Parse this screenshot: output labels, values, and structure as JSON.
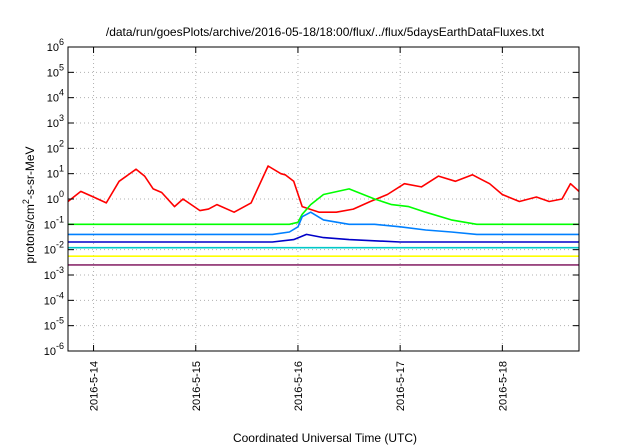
{
  "chart_data": {
    "type": "line",
    "title": "/data/run/goesPlots/archive/2016-05-18/18:00/flux/../flux/5daysEarthDataFluxes.txt",
    "xlabel": "Coordinated Universal Time (UTC)",
    "ylabel_main": "protons/cm",
    "ylabel_sup": "2",
    "ylabel_rest": "-s-sr-MeV",
    "y_scale": "log",
    "ylim": [
      1e-06,
      1000000.0
    ],
    "xlim": [
      "2016-05-13 18:00",
      "2016-05-18 18:00"
    ],
    "grid": true,
    "y_ticks": [
      {
        "exp": -6,
        "base": "10",
        "sup": "-6"
      },
      {
        "exp": -5,
        "base": "10",
        "sup": "-5"
      },
      {
        "exp": -4,
        "base": "10",
        "sup": "-4"
      },
      {
        "exp": -3,
        "base": "10",
        "sup": "-3"
      },
      {
        "exp": -2,
        "base": "10",
        "sup": "-2"
      },
      {
        "exp": -1,
        "base": "10",
        "sup": "-1"
      },
      {
        "exp": 0,
        "base": "10",
        "sup": "0"
      },
      {
        "exp": 1,
        "base": "10",
        "sup": "1"
      },
      {
        "exp": 2,
        "base": "10",
        "sup": "2"
      },
      {
        "exp": 3,
        "base": "10",
        "sup": "3"
      },
      {
        "exp": 4,
        "base": "10",
        "sup": "4"
      },
      {
        "exp": 5,
        "base": "10",
        "sup": "5"
      },
      {
        "exp": 6,
        "base": "10",
        "sup": "6"
      }
    ],
    "x_ticks": [
      {
        "value": "2016-05-14 00:00",
        "label": "2016-5-14"
      },
      {
        "value": "2016-05-15 00:00",
        "label": "2016-5-15"
      },
      {
        "value": "2016-05-16 00:00",
        "label": "2016-5-16"
      },
      {
        "value": "2016-05-17 00:00",
        "label": "2016-5-17"
      },
      {
        "value": "2016-05-18 00:00",
        "label": "2016-5-18"
      }
    ],
    "series": [
      {
        "color": "#ff0000",
        "x": [
          "2016-05-13 18:00",
          "2016-05-13 21:00",
          "2016-05-14 00:00",
          "2016-05-14 03:00",
          "2016-05-14 06:00",
          "2016-05-14 10:00",
          "2016-05-14 12:00",
          "2016-05-14 14:00",
          "2016-05-14 16:00",
          "2016-05-14 19:00",
          "2016-05-14 21:00",
          "2016-05-15 01:00",
          "2016-05-15 03:00",
          "2016-05-15 05:00",
          "2016-05-15 09:00",
          "2016-05-15 13:00",
          "2016-05-15 17:00",
          "2016-05-15 20:00",
          "2016-05-15 21:00",
          "2016-05-15 23:00",
          "2016-05-16 01:00",
          "2016-05-16 05:00",
          "2016-05-16 09:00",
          "2016-05-16 13:00",
          "2016-05-16 17:00",
          "2016-05-16 21:00",
          "2016-05-17 01:00",
          "2016-05-17 05:00",
          "2016-05-17 09:00",
          "2016-05-17 13:00",
          "2016-05-17 17:00",
          "2016-05-17 19:00",
          "2016-05-17 21:00",
          "2016-05-18 00:00",
          "2016-05-18 04:00",
          "2016-05-18 08:00",
          "2016-05-18 11:00",
          "2016-05-18 14:00",
          "2016-05-18 16:00",
          "2016-05-18 18:00"
        ],
        "y": [
          0.8,
          2.0,
          1.2,
          0.7,
          5.0,
          15,
          8,
          2.5,
          1.8,
          0.5,
          1.0,
          0.35,
          0.4,
          0.6,
          0.3,
          0.7,
          20,
          10,
          9,
          5,
          0.5,
          0.3,
          0.3,
          0.4,
          0.8,
          1.5,
          4,
          3,
          8,
          5,
          9,
          6,
          4,
          1.5,
          0.8,
          1.2,
          0.8,
          1.0,
          4,
          2
        ]
      },
      {
        "color": "#00ff00",
        "x": [
          "2016-05-13 18:00",
          "2016-05-14 06:00",
          "2016-05-14 18:00",
          "2016-05-15 06:00",
          "2016-05-15 18:00",
          "2016-05-15 22:00",
          "2016-05-16 00:00",
          "2016-05-16 01:00",
          "2016-05-16 03:00",
          "2016-05-16 06:00",
          "2016-05-16 12:00",
          "2016-05-16 18:00",
          "2016-05-16 22:00",
          "2016-05-17 02:00",
          "2016-05-17 06:00",
          "2016-05-17 12:00",
          "2016-05-17 18:00",
          "2016-05-18 06:00",
          "2016-05-18 18:00"
        ],
        "y": [
          0.1,
          0.1,
          0.1,
          0.1,
          0.1,
          0.1,
          0.12,
          0.25,
          0.6,
          1.5,
          2.5,
          1.0,
          0.6,
          0.5,
          0.3,
          0.15,
          0.1,
          0.1,
          0.1
        ]
      },
      {
        "color": "#0080ff",
        "x": [
          "2016-05-13 18:00",
          "2016-05-14 12:00",
          "2016-05-15 06:00",
          "2016-05-15 18:00",
          "2016-05-15 22:00",
          "2016-05-16 00:00",
          "2016-05-16 01:00",
          "2016-05-16 03:00",
          "2016-05-16 06:00",
          "2016-05-16 12:00",
          "2016-05-16 18:00",
          "2016-05-17 00:00",
          "2016-05-17 06:00",
          "2016-05-17 12:00",
          "2016-05-17 18:00",
          "2016-05-18 06:00",
          "2016-05-18 18:00"
        ],
        "y": [
          0.04,
          0.04,
          0.04,
          0.04,
          0.05,
          0.08,
          0.2,
          0.3,
          0.15,
          0.1,
          0.1,
          0.08,
          0.06,
          0.05,
          0.04,
          0.04,
          0.04
        ]
      },
      {
        "color": "#0000c8",
        "x": [
          "2016-05-13 18:00",
          "2016-05-14 12:00",
          "2016-05-15 06:00",
          "2016-05-15 18:00",
          "2016-05-15 23:00",
          "2016-05-16 02:00",
          "2016-05-16 06:00",
          "2016-05-16 12:00",
          "2016-05-17 00:00",
          "2016-05-17 12:00",
          "2016-05-18 00:00",
          "2016-05-18 18:00"
        ],
        "y": [
          0.02,
          0.02,
          0.02,
          0.02,
          0.025,
          0.04,
          0.03,
          0.025,
          0.02,
          0.02,
          0.02,
          0.02
        ]
      },
      {
        "color": "#00c8c8",
        "x": [
          "2016-05-13 18:00",
          "2016-05-15 00:00",
          "2016-05-16 00:00",
          "2016-05-17 00:00",
          "2016-05-18 00:00",
          "2016-05-18 18:00"
        ],
        "y": [
          0.012,
          0.012,
          0.012,
          0.012,
          0.012,
          0.012
        ]
      },
      {
        "color": "#ffff00",
        "x": [
          "2016-05-13 18:00",
          "2016-05-15 00:00",
          "2016-05-16 00:00",
          "2016-05-17 00:00",
          "2016-05-18 00:00",
          "2016-05-18 18:00"
        ],
        "y": [
          0.0055,
          0.0055,
          0.0055,
          0.0055,
          0.0055,
          0.0055
        ]
      },
      {
        "color": "#8b2d6e",
        "x": [
          "2016-05-13 18:00",
          "2016-05-15 00:00",
          "2016-05-16 00:00",
          "2016-05-17 00:00",
          "2016-05-18 00:00",
          "2016-05-18 18:00"
        ],
        "y": [
          0.0025,
          0.0025,
          0.0025,
          0.0025,
          0.0025,
          0.0025
        ]
      }
    ]
  }
}
